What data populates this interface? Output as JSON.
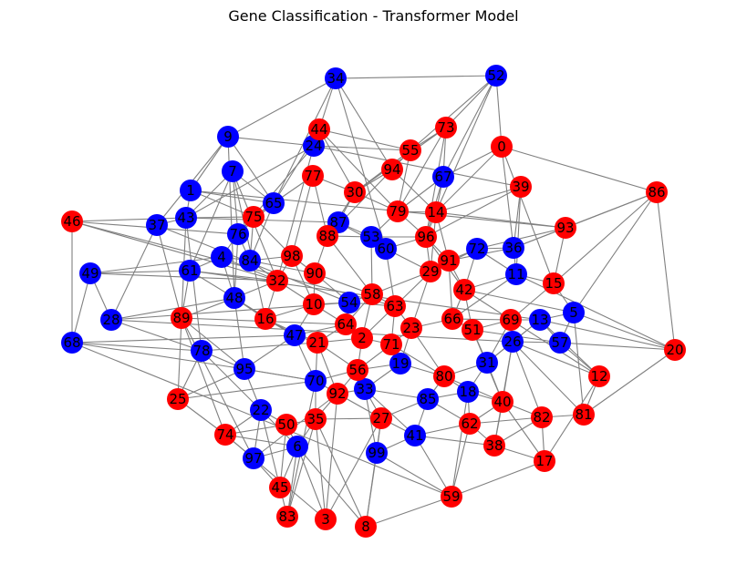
{
  "title": "Gene Classification - Transformer Model",
  "colors": {
    "red": "#ff0000",
    "blue": "#0000ff",
    "edge": "#808080"
  },
  "nodes": [
    {
      "id": "0",
      "class": "red"
    },
    {
      "id": "1",
      "class": "blue"
    },
    {
      "id": "2",
      "class": "red"
    },
    {
      "id": "3",
      "class": "red"
    },
    {
      "id": "4",
      "class": "blue"
    },
    {
      "id": "5",
      "class": "blue"
    },
    {
      "id": "6",
      "class": "blue"
    },
    {
      "id": "7",
      "class": "blue"
    },
    {
      "id": "8",
      "class": "red"
    },
    {
      "id": "9",
      "class": "blue"
    },
    {
      "id": "10",
      "class": "red"
    },
    {
      "id": "11",
      "class": "blue"
    },
    {
      "id": "12",
      "class": "red"
    },
    {
      "id": "13",
      "class": "blue"
    },
    {
      "id": "14",
      "class": "red"
    },
    {
      "id": "15",
      "class": "red"
    },
    {
      "id": "16",
      "class": "red"
    },
    {
      "id": "17",
      "class": "red"
    },
    {
      "id": "18",
      "class": "blue"
    },
    {
      "id": "19",
      "class": "blue"
    },
    {
      "id": "20",
      "class": "red"
    },
    {
      "id": "21",
      "class": "red"
    },
    {
      "id": "22",
      "class": "blue"
    },
    {
      "id": "23",
      "class": "red"
    },
    {
      "id": "24",
      "class": "blue"
    },
    {
      "id": "25",
      "class": "red"
    },
    {
      "id": "26",
      "class": "blue"
    },
    {
      "id": "27",
      "class": "red"
    },
    {
      "id": "28",
      "class": "blue"
    },
    {
      "id": "29",
      "class": "red"
    },
    {
      "id": "30",
      "class": "red"
    },
    {
      "id": "31",
      "class": "blue"
    },
    {
      "id": "32",
      "class": "red"
    },
    {
      "id": "33",
      "class": "blue"
    },
    {
      "id": "34",
      "class": "blue"
    },
    {
      "id": "35",
      "class": "red"
    },
    {
      "id": "36",
      "class": "blue"
    },
    {
      "id": "37",
      "class": "blue"
    },
    {
      "id": "38",
      "class": "red"
    },
    {
      "id": "39",
      "class": "red"
    },
    {
      "id": "40",
      "class": "red"
    },
    {
      "id": "41",
      "class": "blue"
    },
    {
      "id": "42",
      "class": "red"
    },
    {
      "id": "43",
      "class": "blue"
    },
    {
      "id": "44",
      "class": "red"
    },
    {
      "id": "45",
      "class": "red"
    },
    {
      "id": "46",
      "class": "red"
    },
    {
      "id": "47",
      "class": "blue"
    },
    {
      "id": "48",
      "class": "blue"
    },
    {
      "id": "49",
      "class": "blue"
    },
    {
      "id": "50",
      "class": "red"
    },
    {
      "id": "51",
      "class": "red"
    },
    {
      "id": "52",
      "class": "blue"
    },
    {
      "id": "53",
      "class": "blue"
    },
    {
      "id": "54",
      "class": "blue"
    },
    {
      "id": "55",
      "class": "red"
    },
    {
      "id": "56",
      "class": "red"
    },
    {
      "id": "57",
      "class": "blue"
    },
    {
      "id": "58",
      "class": "red"
    },
    {
      "id": "59",
      "class": "red"
    },
    {
      "id": "60",
      "class": "blue"
    },
    {
      "id": "61",
      "class": "blue"
    },
    {
      "id": "62",
      "class": "red"
    },
    {
      "id": "63",
      "class": "red"
    },
    {
      "id": "64",
      "class": "red"
    },
    {
      "id": "65",
      "class": "blue"
    },
    {
      "id": "66",
      "class": "red"
    },
    {
      "id": "67",
      "class": "blue"
    },
    {
      "id": "68",
      "class": "blue"
    },
    {
      "id": "69",
      "class": "red"
    },
    {
      "id": "70",
      "class": "blue"
    },
    {
      "id": "71",
      "class": "red"
    },
    {
      "id": "72",
      "class": "blue"
    },
    {
      "id": "73",
      "class": "red"
    },
    {
      "id": "74",
      "class": "red"
    },
    {
      "id": "75",
      "class": "red"
    },
    {
      "id": "76",
      "class": "blue"
    },
    {
      "id": "77",
      "class": "red"
    },
    {
      "id": "78",
      "class": "blue"
    },
    {
      "id": "79",
      "class": "red"
    },
    {
      "id": "80",
      "class": "red"
    },
    {
      "id": "81",
      "class": "red"
    },
    {
      "id": "82",
      "class": "red"
    },
    {
      "id": "83",
      "class": "red"
    },
    {
      "id": "84",
      "class": "blue"
    },
    {
      "id": "85",
      "class": "blue"
    },
    {
      "id": "86",
      "class": "red"
    },
    {
      "id": "87",
      "class": "blue"
    },
    {
      "id": "88",
      "class": "red"
    },
    {
      "id": "89",
      "class": "red"
    },
    {
      "id": "90",
      "class": "red"
    },
    {
      "id": "91",
      "class": "red"
    },
    {
      "id": "92",
      "class": "red"
    },
    {
      "id": "93",
      "class": "red"
    },
    {
      "id": "94",
      "class": "red"
    },
    {
      "id": "95",
      "class": "blue"
    },
    {
      "id": "96",
      "class": "red"
    },
    {
      "id": "97",
      "class": "blue"
    },
    {
      "id": "98",
      "class": "red"
    },
    {
      "id": "99",
      "class": "blue"
    }
  ],
  "edges": [
    [
      "34",
      "52"
    ],
    [
      "34",
      "44"
    ],
    [
      "34",
      "9"
    ],
    [
      "34",
      "65"
    ],
    [
      "34",
      "94"
    ],
    [
      "34",
      "60"
    ],
    [
      "52",
      "73"
    ],
    [
      "52",
      "0"
    ],
    [
      "52",
      "67"
    ],
    [
      "52",
      "14"
    ],
    [
      "52",
      "55"
    ],
    [
      "73",
      "55"
    ],
    [
      "73",
      "67"
    ],
    [
      "73",
      "96"
    ],
    [
      "73",
      "79"
    ],
    [
      "73",
      "30"
    ],
    [
      "0",
      "67"
    ],
    [
      "0",
      "36"
    ],
    [
      "0",
      "15"
    ],
    [
      "0",
      "86"
    ],
    [
      "0",
      "14"
    ],
    [
      "44",
      "24"
    ],
    [
      "44",
      "65"
    ],
    [
      "44",
      "79"
    ],
    [
      "44",
      "55"
    ],
    [
      "44",
      "30"
    ],
    [
      "24",
      "55"
    ],
    [
      "24",
      "43"
    ],
    [
      "24",
      "76"
    ],
    [
      "24",
      "39"
    ],
    [
      "24",
      "32"
    ],
    [
      "9",
      "24"
    ],
    [
      "9",
      "65"
    ],
    [
      "9",
      "37"
    ],
    [
      "9",
      "48"
    ],
    [
      "9",
      "1"
    ],
    [
      "7",
      "65"
    ],
    [
      "7",
      "43"
    ],
    [
      "7",
      "76"
    ],
    [
      "7",
      "61"
    ],
    [
      "7",
      "16"
    ],
    [
      "7",
      "32"
    ],
    [
      "1",
      "65"
    ],
    [
      "1",
      "43"
    ],
    [
      "1",
      "75"
    ],
    [
      "1",
      "93"
    ],
    [
      "46",
      "43"
    ],
    [
      "46",
      "76"
    ],
    [
      "46",
      "32"
    ],
    [
      "46",
      "68"
    ],
    [
      "46",
      "63"
    ],
    [
      "37",
      "43"
    ],
    [
      "37",
      "28"
    ],
    [
      "37",
      "89"
    ],
    [
      "37",
      "54"
    ],
    [
      "43",
      "75"
    ],
    [
      "43",
      "78"
    ],
    [
      "43",
      "25"
    ],
    [
      "43",
      "87"
    ],
    [
      "49",
      "61"
    ],
    [
      "49",
      "4"
    ],
    [
      "49",
      "68"
    ],
    [
      "49",
      "28"
    ],
    [
      "49",
      "32"
    ],
    [
      "61",
      "4"
    ],
    [
      "61",
      "32"
    ],
    [
      "61",
      "89"
    ],
    [
      "61",
      "48"
    ],
    [
      "61",
      "13"
    ],
    [
      "28",
      "48"
    ],
    [
      "28",
      "26"
    ],
    [
      "28",
      "78"
    ],
    [
      "28",
      "54"
    ],
    [
      "68",
      "78"
    ],
    [
      "68",
      "47"
    ],
    [
      "68",
      "95"
    ],
    [
      "68",
      "59"
    ],
    [
      "89",
      "48"
    ],
    [
      "89",
      "95"
    ],
    [
      "89",
      "97"
    ],
    [
      "89",
      "74"
    ],
    [
      "89",
      "64"
    ],
    [
      "78",
      "25"
    ],
    [
      "78",
      "95"
    ],
    [
      "78",
      "22"
    ],
    [
      "78",
      "21"
    ],
    [
      "25",
      "95"
    ],
    [
      "25",
      "74"
    ],
    [
      "25",
      "70"
    ],
    [
      "74",
      "97"
    ],
    [
      "74",
      "22"
    ],
    [
      "74",
      "50"
    ],
    [
      "74",
      "6"
    ],
    [
      "74",
      "3"
    ],
    [
      "97",
      "45"
    ],
    [
      "97",
      "6"
    ],
    [
      "97",
      "22"
    ],
    [
      "97",
      "92"
    ],
    [
      "45",
      "83"
    ],
    [
      "45",
      "6"
    ],
    [
      "45",
      "50"
    ],
    [
      "45",
      "22"
    ],
    [
      "83",
      "6"
    ],
    [
      "83",
      "35"
    ],
    [
      "83",
      "70"
    ],
    [
      "3",
      "6"
    ],
    [
      "3",
      "35"
    ],
    [
      "3",
      "92"
    ],
    [
      "3",
      "27"
    ],
    [
      "8",
      "99"
    ],
    [
      "8",
      "27"
    ],
    [
      "8",
      "59"
    ],
    [
      "8",
      "6"
    ],
    [
      "8",
      "35"
    ],
    [
      "99",
      "41"
    ],
    [
      "99",
      "27"
    ],
    [
      "99",
      "33"
    ],
    [
      "99",
      "59"
    ],
    [
      "59",
      "41"
    ],
    [
      "59",
      "62"
    ],
    [
      "59",
      "18"
    ],
    [
      "59",
      "17"
    ],
    [
      "17",
      "38"
    ],
    [
      "17",
      "40"
    ],
    [
      "17",
      "82"
    ],
    [
      "17",
      "12"
    ],
    [
      "38",
      "62"
    ],
    [
      "38",
      "40"
    ],
    [
      "38",
      "82"
    ],
    [
      "38",
      "26"
    ],
    [
      "81",
      "82"
    ],
    [
      "81",
      "12"
    ],
    [
      "81",
      "26"
    ],
    [
      "81",
      "20"
    ],
    [
      "81",
      "5"
    ],
    [
      "20",
      "57"
    ],
    [
      "20",
      "5"
    ],
    [
      "20",
      "13"
    ],
    [
      "20",
      "11"
    ],
    [
      "20",
      "86"
    ],
    [
      "12",
      "57"
    ],
    [
      "12",
      "13"
    ],
    [
      "12",
      "26"
    ],
    [
      "12",
      "69"
    ],
    [
      "86",
      "15"
    ],
    [
      "86",
      "36"
    ],
    [
      "86",
      "5"
    ],
    [
      "86",
      "93"
    ],
    [
      "93",
      "15"
    ],
    [
      "93",
      "36"
    ],
    [
      "93",
      "14"
    ],
    [
      "93",
      "72"
    ],
    [
      "39",
      "36"
    ],
    [
      "39",
      "96"
    ],
    [
      "39",
      "11"
    ],
    [
      "39",
      "14"
    ],
    [
      "15",
      "5"
    ],
    [
      "15",
      "11"
    ],
    [
      "15",
      "69"
    ],
    [
      "5",
      "57"
    ],
    [
      "5",
      "13"
    ],
    [
      "5",
      "42"
    ],
    [
      "57",
      "13"
    ],
    [
      "57",
      "26"
    ],
    [
      "57",
      "51"
    ],
    [
      "13",
      "69"
    ],
    [
      "13",
      "26"
    ],
    [
      "13",
      "31"
    ],
    [
      "36",
      "72"
    ],
    [
      "36",
      "11"
    ],
    [
      "36",
      "91"
    ],
    [
      "11",
      "72"
    ],
    [
      "11",
      "42"
    ],
    [
      "11",
      "66"
    ],
    [
      "72",
      "91"
    ],
    [
      "72",
      "29"
    ],
    [
      "72",
      "42"
    ],
    [
      "67",
      "14"
    ],
    [
      "67",
      "96"
    ],
    [
      "67",
      "79"
    ],
    [
      "55",
      "94"
    ],
    [
      "55",
      "30"
    ],
    [
      "55",
      "79"
    ],
    [
      "94",
      "30"
    ],
    [
      "94",
      "88"
    ],
    [
      "94",
      "14"
    ],
    [
      "77",
      "30"
    ],
    [
      "77",
      "75"
    ],
    [
      "77",
      "88"
    ],
    [
      "77",
      "98"
    ],
    [
      "30",
      "87"
    ],
    [
      "30",
      "88"
    ],
    [
      "30",
      "79"
    ],
    [
      "65",
      "75"
    ],
    [
      "65",
      "76"
    ],
    [
      "65",
      "84"
    ],
    [
      "75",
      "76"
    ],
    [
      "75",
      "84"
    ],
    [
      "75",
      "98"
    ],
    [
      "76",
      "4"
    ],
    [
      "76",
      "84"
    ],
    [
      "76",
      "48"
    ],
    [
      "4",
      "84"
    ],
    [
      "4",
      "48"
    ],
    [
      "4",
      "32"
    ],
    [
      "84",
      "32"
    ],
    [
      "84",
      "98"
    ],
    [
      "84",
      "90"
    ],
    [
      "98",
      "32"
    ],
    [
      "98",
      "90"
    ],
    [
      "98",
      "10"
    ],
    [
      "32",
      "48"
    ],
    [
      "32",
      "16"
    ],
    [
      "32",
      "10"
    ],
    [
      "48",
      "16"
    ],
    [
      "48",
      "47"
    ],
    [
      "48",
      "95"
    ],
    [
      "16",
      "10"
    ],
    [
      "16",
      "47"
    ],
    [
      "16",
      "21"
    ],
    [
      "87",
      "88"
    ],
    [
      "87",
      "53"
    ],
    [
      "87",
      "60"
    ],
    [
      "88",
      "53"
    ],
    [
      "88",
      "90"
    ],
    [
      "88",
      "58"
    ],
    [
      "53",
      "60"
    ],
    [
      "53",
      "96"
    ],
    [
      "53",
      "58"
    ],
    [
      "60",
      "96"
    ],
    [
      "60",
      "29"
    ],
    [
      "60",
      "63"
    ],
    [
      "79",
      "14"
    ],
    [
      "79",
      "96"
    ],
    [
      "79",
      "53"
    ],
    [
      "14",
      "96"
    ],
    [
      "14",
      "91"
    ],
    [
      "14",
      "29"
    ],
    [
      "96",
      "91"
    ],
    [
      "96",
      "29"
    ],
    [
      "96",
      "42"
    ],
    [
      "91",
      "29"
    ],
    [
      "91",
      "42"
    ],
    [
      "91",
      "66"
    ],
    [
      "29",
      "58"
    ],
    [
      "29",
      "63"
    ],
    [
      "29",
      "23"
    ],
    [
      "42",
      "66"
    ],
    [
      "42",
      "51"
    ],
    [
      "42",
      "69"
    ],
    [
      "66",
      "51"
    ],
    [
      "66",
      "69"
    ],
    [
      "66",
      "23"
    ],
    [
      "51",
      "69"
    ],
    [
      "51",
      "31"
    ],
    [
      "51",
      "40"
    ],
    [
      "69",
      "26"
    ],
    [
      "69",
      "31"
    ],
    [
      "26",
      "31"
    ],
    [
      "26",
      "40"
    ],
    [
      "26",
      "82"
    ],
    [
      "31",
      "40"
    ],
    [
      "31",
      "18"
    ],
    [
      "31",
      "80"
    ],
    [
      "90",
      "10"
    ],
    [
      "90",
      "54"
    ],
    [
      "90",
      "58"
    ],
    [
      "10",
      "54"
    ],
    [
      "10",
      "64"
    ],
    [
      "10",
      "47"
    ],
    [
      "54",
      "58"
    ],
    [
      "54",
      "64"
    ],
    [
      "54",
      "63"
    ],
    [
      "58",
      "63"
    ],
    [
      "58",
      "64"
    ],
    [
      "58",
      "2"
    ],
    [
      "63",
      "23"
    ],
    [
      "63",
      "2"
    ],
    [
      "63",
      "71"
    ],
    [
      "64",
      "2"
    ],
    [
      "64",
      "21"
    ],
    [
      "64",
      "47"
    ],
    [
      "2",
      "71"
    ],
    [
      "2",
      "21"
    ],
    [
      "2",
      "56"
    ],
    [
      "23",
      "71"
    ],
    [
      "23",
      "19"
    ],
    [
      "23",
      "80"
    ],
    [
      "71",
      "19"
    ],
    [
      "71",
      "56"
    ],
    [
      "71",
      "80"
    ],
    [
      "47",
      "21"
    ],
    [
      "47",
      "70"
    ],
    [
      "47",
      "95"
    ],
    [
      "21",
      "70"
    ],
    [
      "21",
      "56"
    ],
    [
      "21",
      "92"
    ],
    [
      "19",
      "56"
    ],
    [
      "19",
      "80"
    ],
    [
      "19",
      "33"
    ],
    [
      "80",
      "18"
    ],
    [
      "80",
      "85"
    ],
    [
      "80",
      "40"
    ],
    [
      "18",
      "85"
    ],
    [
      "18",
      "62"
    ],
    [
      "18",
      "40"
    ],
    [
      "40",
      "62"
    ],
    [
      "40",
      "82"
    ],
    [
      "56",
      "33"
    ],
    [
      "56",
      "92"
    ],
    [
      "56",
      "70"
    ],
    [
      "70",
      "92"
    ],
    [
      "70",
      "35"
    ],
    [
      "70",
      "95"
    ],
    [
      "92",
      "33"
    ],
    [
      "92",
      "35"
    ],
    [
      "92",
      "27"
    ],
    [
      "33",
      "27"
    ],
    [
      "33",
      "85"
    ],
    [
      "33",
      "41"
    ],
    [
      "85",
      "41"
    ],
    [
      "85",
      "62"
    ],
    [
      "85",
      "27"
    ],
    [
      "27",
      "35"
    ],
    [
      "27",
      "41"
    ],
    [
      "35",
      "50"
    ],
    [
      "35",
      "6"
    ],
    [
      "50",
      "22"
    ],
    [
      "50",
      "6"
    ],
    [
      "22",
      "95"
    ],
    [
      "22",
      "6"
    ],
    [
      "95",
      "70"
    ],
    [
      "41",
      "62"
    ],
    [
      "41",
      "38"
    ],
    [
      "62",
      "82"
    ]
  ]
}
